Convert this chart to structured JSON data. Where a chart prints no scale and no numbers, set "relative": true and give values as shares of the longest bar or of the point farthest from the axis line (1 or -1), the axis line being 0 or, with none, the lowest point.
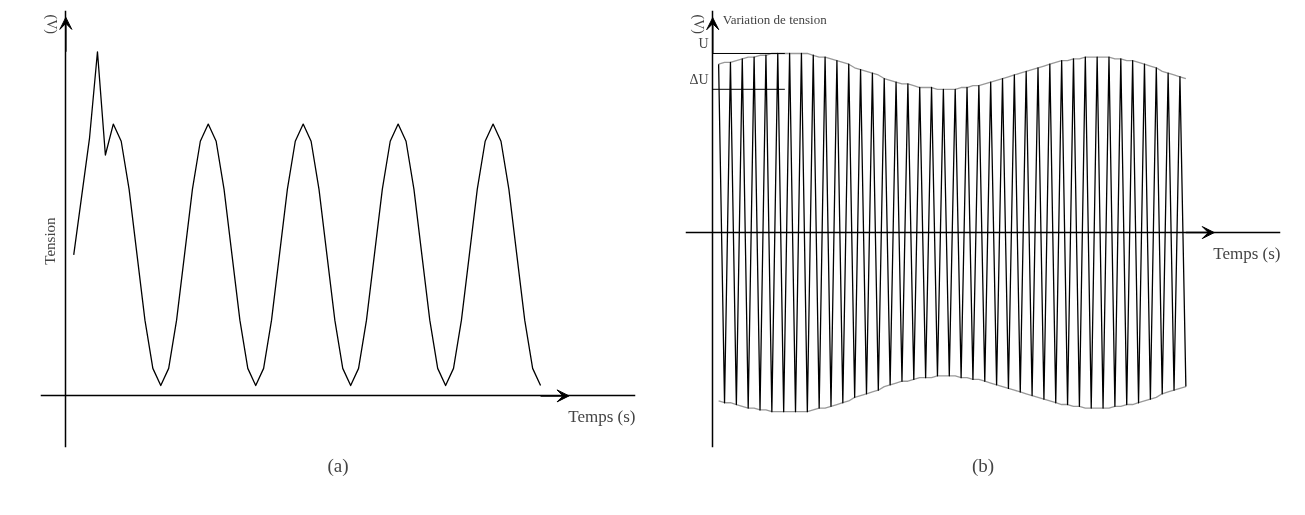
{
  "chart_data": [
    {
      "type": "line",
      "relative": true,
      "ylabel": "Tension",
      "xlabel": "Temps (s)",
      "subtitle": "(a)",
      "annotations": [
        "(V)"
      ],
      "categories": [
        null,
        null,
        null,
        null,
        null,
        null,
        null,
        null,
        null,
        null,
        null,
        null,
        null,
        null,
        null,
        null,
        null,
        null,
        null,
        null,
        null,
        null,
        null,
        null,
        null,
        null,
        null,
        null,
        null,
        null,
        null,
        null,
        null,
        null,
        null,
        null,
        null,
        null,
        null,
        null,
        null,
        null,
        null,
        null,
        null,
        null,
        null,
        null,
        null,
        null,
        null,
        null,
        null,
        null,
        null,
        null,
        null,
        null,
        null,
        null
      ],
      "series": [
        {
          "color": "#000000",
          "values": [
            0.41,
            0.58,
            0.75,
            1.0,
            0.7,
            0.79,
            0.74,
            0.6,
            0.41,
            0.22,
            0.08,
            0.03,
            0.08,
            0.22,
            0.41,
            0.6,
            0.74,
            0.79,
            0.74,
            0.6,
            0.41,
            0.22,
            0.08,
            0.03,
            0.08,
            0.22,
            0.41,
            0.6,
            0.74,
            0.79,
            0.74,
            0.6,
            0.41,
            0.22,
            0.08,
            0.03,
            0.08,
            0.22,
            0.41,
            0.6,
            0.74,
            0.79,
            0.74,
            0.6,
            0.41,
            0.22,
            0.08,
            0.03,
            0.08,
            0.22,
            0.41,
            0.6,
            0.74,
            0.79,
            0.74,
            0.6,
            0.41,
            0.22,
            0.08,
            0.03
          ]
        }
      ]
    },
    {
      "type": "line",
      "relative": true,
      "title": "Variation de tension",
      "xlabel": "Temps (s)",
      "subtitle": "(b)",
      "annotations": [
        "(V)"
      ],
      "ref_lines": [
        {
          "axis": "y",
          "value": 1.0,
          "label": "U"
        },
        {
          "axis": "y",
          "value": 0.8,
          "label": "ΔU"
        }
      ],
      "categories": [
        null,
        null,
        null,
        null,
        null,
        null,
        null,
        null,
        null,
        null,
        null,
        null,
        null,
        null,
        null,
        null,
        null,
        null,
        null,
        null,
        null,
        null,
        null,
        null,
        null,
        null,
        null,
        null,
        null,
        null,
        null,
        null,
        null,
        null,
        null,
        null,
        null,
        null,
        null,
        null,
        null,
        null,
        null,
        null,
        null,
        null,
        null,
        null,
        null,
        null,
        null,
        null,
        null,
        null,
        null,
        null,
        null,
        null,
        null,
        null,
        null,
        null,
        null,
        null,
        null,
        null,
        null,
        null,
        null,
        null,
        null,
        null,
        null,
        null,
        null,
        null,
        null,
        null,
        null,
        null
      ],
      "series": [
        {
          "color": "#999999",
          "values": [
            0.94,
            0.95,
            0.95,
            0.96,
            0.97,
            0.98,
            0.98,
            0.99,
            0.99,
            1.0,
            1.0,
            1.0,
            1.0,
            1.0,
            1.0,
            1.0,
            0.99,
            0.98,
            0.98,
            0.97,
            0.96,
            0.95,
            0.94,
            0.92,
            0.91,
            0.9,
            0.89,
            0.88,
            0.86,
            0.85,
            0.84,
            0.83,
            0.83,
            0.82,
            0.81,
            0.81,
            0.81,
            0.8,
            0.8,
            0.8,
            0.8,
            0.81,
            0.81,
            0.82,
            0.82,
            0.83,
            0.84,
            0.85,
            0.86,
            0.87,
            0.88,
            0.89,
            0.9,
            0.91,
            0.92,
            0.93,
            0.94,
            0.95,
            0.96,
            0.96,
            0.97,
            0.97,
            0.98,
            0.98,
            0.98,
            0.98,
            0.98,
            0.97,
            0.97,
            0.96,
            0.96,
            0.95,
            0.94,
            0.93,
            0.92,
            0.9,
            0.89,
            0.88,
            0.87,
            0.86
          ]
        },
        {
          "color": "#999999",
          "values": [
            -0.94,
            -0.95,
            -0.95,
            -0.96,
            -0.97,
            -0.98,
            -0.98,
            -0.99,
            -0.99,
            -1.0,
            -1.0,
            -1.0,
            -1.0,
            -1.0,
            -1.0,
            -1.0,
            -0.99,
            -0.98,
            -0.98,
            -0.97,
            -0.96,
            -0.95,
            -0.94,
            -0.92,
            -0.91,
            -0.9,
            -0.89,
            -0.88,
            -0.86,
            -0.85,
            -0.84,
            -0.83,
            -0.83,
            -0.82,
            -0.81,
            -0.81,
            -0.81,
            -0.8,
            -0.8,
            -0.8,
            -0.8,
            -0.81,
            -0.81,
            -0.82,
            -0.82,
            -0.83,
            -0.84,
            -0.85,
            -0.86,
            -0.87,
            -0.88,
            -0.89,
            -0.9,
            -0.91,
            -0.92,
            -0.93,
            -0.94,
            -0.95,
            -0.96,
            -0.96,
            -0.97,
            -0.97,
            -0.98,
            -0.98,
            -0.98,
            -0.98,
            -0.98,
            -0.97,
            -0.97,
            -0.96,
            -0.96,
            -0.95,
            -0.94,
            -0.93,
            -0.92,
            -0.9,
            -0.89,
            -0.88,
            -0.87,
            -0.86
          ]
        },
        {
          "color": "#000000",
          "values": [
            0.94,
            -0.95,
            0.95,
            -0.96,
            0.97,
            -0.98,
            0.98,
            -0.99,
            0.99,
            -1.0,
            1.0,
            -1.0,
            1.0,
            -1.0,
            1.0,
            -1.0,
            0.99,
            -0.98,
            0.98,
            -0.97,
            0.96,
            -0.95,
            0.94,
            -0.92,
            0.91,
            -0.9,
            0.89,
            -0.88,
            0.86,
            -0.85,
            0.84,
            -0.83,
            0.83,
            -0.82,
            0.81,
            -0.81,
            0.81,
            -0.8,
            0.8,
            -0.8,
            0.8,
            -0.81,
            0.81,
            -0.82,
            0.82,
            -0.83,
            0.84,
            -0.85,
            0.86,
            -0.87,
            0.88,
            -0.89,
            0.9,
            -0.91,
            0.92,
            -0.93,
            0.94,
            -0.95,
            0.96,
            -0.96,
            0.97,
            -0.97,
            0.98,
            -0.98,
            0.98,
            -0.98,
            0.98,
            -0.97,
            0.97,
            -0.96,
            0.96,
            -0.95,
            0.94,
            -0.93,
            0.92,
            -0.9,
            0.89,
            -0.88,
            0.87,
            -0.86
          ]
        }
      ]
    }
  ]
}
